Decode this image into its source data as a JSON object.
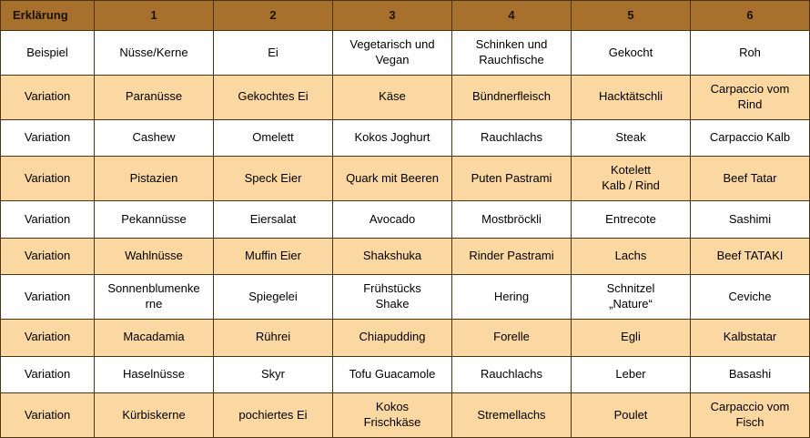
{
  "colors": {
    "header_bg": "#a7702d",
    "header_text": "#1a1200",
    "shade_bg": "#fbd7a2",
    "border": "#4a3414",
    "row_bg": "#ffffff",
    "body_text": "#000000"
  },
  "table": {
    "header": [
      "Erklärung",
      "1",
      "2",
      "3",
      "4",
      "5",
      "6"
    ],
    "rows": [
      {
        "label": "Beispiel",
        "shaded": false,
        "cells": [
          "Nüsse/Kerne",
          "Ei",
          "Vegetarisch und\nVegan",
          "Schinken und\nRauchfische",
          "Gekocht",
          "Roh"
        ]
      },
      {
        "label": "Variation",
        "shaded": true,
        "cells": [
          "Paranüsse",
          "Gekochtes Ei",
          "Käse",
          "Bündnerfleisch",
          "Hacktätschli",
          "Carpaccio vom\nRind"
        ]
      },
      {
        "label": "Variation",
        "shaded": false,
        "cells": [
          "Cashew",
          "Omelett",
          "Kokos Joghurt",
          "Rauchlachs",
          "Steak",
          "Carpaccio Kalb"
        ]
      },
      {
        "label": "Variation",
        "shaded": true,
        "cells": [
          "Pistazien",
          "Speck Eier",
          "Quark mit Beeren",
          "Puten Pastrami",
          "Kotelett\nKalb / Rind",
          "Beef Tatar"
        ]
      },
      {
        "label": "Variation",
        "shaded": false,
        "cells": [
          "Pekannüsse",
          "Eiersalat",
          "Avocado",
          "Mostbröckli",
          "Entrecote",
          "Sashimi"
        ]
      },
      {
        "label": "Variation",
        "shaded": true,
        "cells": [
          "Wahlnüsse",
          "Muffin Eier",
          "Shakshuka",
          "Rinder Pastrami",
          "Lachs",
          "Beef TATAKI"
        ]
      },
      {
        "label": "Variation",
        "shaded": false,
        "cells": [
          "Sonnenblumenke\nrne",
          "Spiegelei",
          "Frühstücks\nShake",
          "Hering",
          "Schnitzel\n„Nature“",
          "Ceviche"
        ]
      },
      {
        "label": "Variation",
        "shaded": true,
        "cells": [
          "Macadamia",
          "Rührei",
          "Chiapudding",
          "Forelle",
          "Egli",
          "Kalbstatar"
        ]
      },
      {
        "label": "Variation",
        "shaded": false,
        "cells": [
          "Haselnüsse",
          "Skyr",
          "Tofu Guacamole",
          "Rauchlachs",
          "Leber",
          "Basashi"
        ]
      },
      {
        "label": "Variation",
        "shaded": true,
        "cells": [
          "Kürbiskerne",
          "pochiertes Ei",
          "Kokos\nFrischkäse",
          "Stremellachs",
          "Poulet",
          "Carpaccio vom\nFisch"
        ]
      }
    ]
  }
}
